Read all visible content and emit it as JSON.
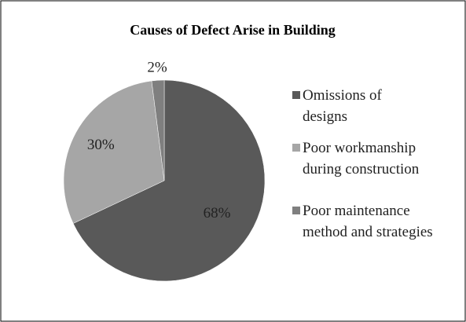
{
  "chart_data": {
    "type": "pie",
    "title": "Causes of Defect Arise in Building",
    "categories": [
      "Omissions of designs",
      "Poor workmanship during construction",
      "Poor maintenance method and strategies"
    ],
    "values": [
      68,
      30,
      2
    ],
    "value_labels": [
      "68%",
      "30%",
      "2%"
    ],
    "colors": [
      "#595959",
      "#a6a6a6",
      "#7f7f7f"
    ],
    "legend": "right"
  }
}
